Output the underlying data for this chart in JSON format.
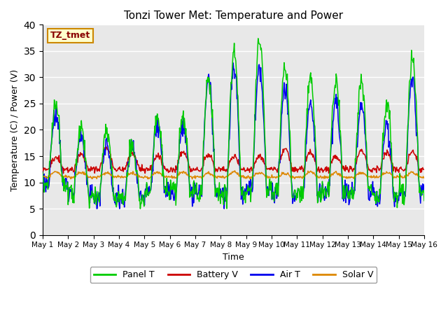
{
  "title": "Tonzi Tower Met: Temperature and Power",
  "xlabel": "Time",
  "ylabel": "Temperature (C) / Power (V)",
  "ylim": [
    0,
    40
  ],
  "yticks": [
    0,
    5,
    10,
    15,
    20,
    25,
    30,
    35,
    40
  ],
  "xlim_days": [
    1,
    16
  ],
  "xtick_labels": [
    "May 1",
    "May 2",
    "May 3",
    "May 4",
    "May 5",
    "May 6",
    "May 7",
    "May 8",
    "May 9",
    "May 10",
    "May 11",
    "May 12",
    "May 13",
    "May 14",
    "May 15",
    "May 16"
  ],
  "legend_label": "TZ_tmet",
  "colors": {
    "panel_t": "#00CC00",
    "battery_v": "#CC0000",
    "air_t": "#0000EE",
    "solar_v": "#DD8800"
  },
  "bg_color": "#E8E8E8",
  "legend_box_color": "#FFFFCC",
  "legend_box_edge": "#CC8800"
}
